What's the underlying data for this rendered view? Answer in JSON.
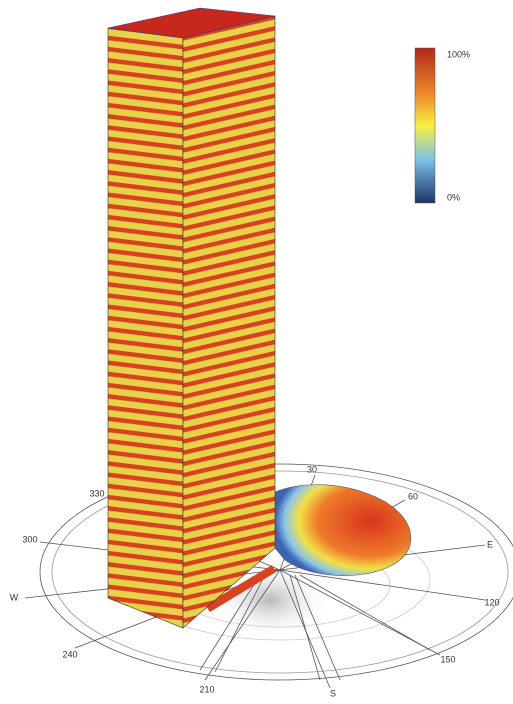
{
  "legend": {
    "max_label": "100%",
    "min_label": "0%"
  },
  "compass": {
    "labels": [
      "30",
      "60",
      "E",
      "120",
      "150",
      "S",
      "210",
      "240",
      "W",
      "300",
      "330"
    ]
  }
}
